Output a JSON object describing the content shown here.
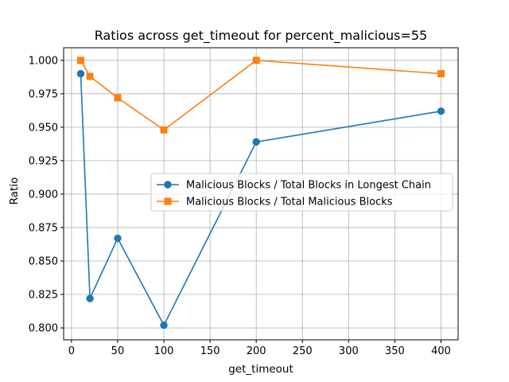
{
  "chart_data": {
    "type": "line",
    "title": "Ratios across get_timeout for percent_malicious=55",
    "xlabel": "get_timeout",
    "ylabel": "Ratio",
    "xlim": [
      -8.5,
      418.5
    ],
    "ylim": [
      0.7911,
      1.0094
    ],
    "x_ticks": [
      0,
      50,
      100,
      150,
      200,
      250,
      300,
      350,
      400
    ],
    "x_tick_labels": [
      "0",
      "50",
      "100",
      "150",
      "200",
      "250",
      "300",
      "350",
      "400"
    ],
    "y_ticks": [
      0.8,
      0.825,
      0.85,
      0.875,
      0.9,
      0.925,
      0.95,
      0.975,
      1.0
    ],
    "y_tick_labels": [
      "0.800",
      "0.825",
      "0.850",
      "0.875",
      "0.900",
      "0.925",
      "0.950",
      "0.975",
      "1.000"
    ],
    "grid": true,
    "legend_position": "center-right",
    "x": [
      10,
      20,
      50,
      100,
      200,
      400
    ],
    "series": [
      {
        "name": "Malicious Blocks / Total Blocks in Longest Chain",
        "values": [
          0.99,
          0.822,
          0.867,
          0.802,
          0.939,
          0.962
        ],
        "color": "#1f77b4",
        "marker": "circle"
      },
      {
        "name": "Malicious Blocks / Total Malicious Blocks",
        "values": [
          1.0,
          0.988,
          0.972,
          0.948,
          1.0,
          0.99
        ],
        "color": "#ff7f0e",
        "marker": "square"
      }
    ]
  }
}
